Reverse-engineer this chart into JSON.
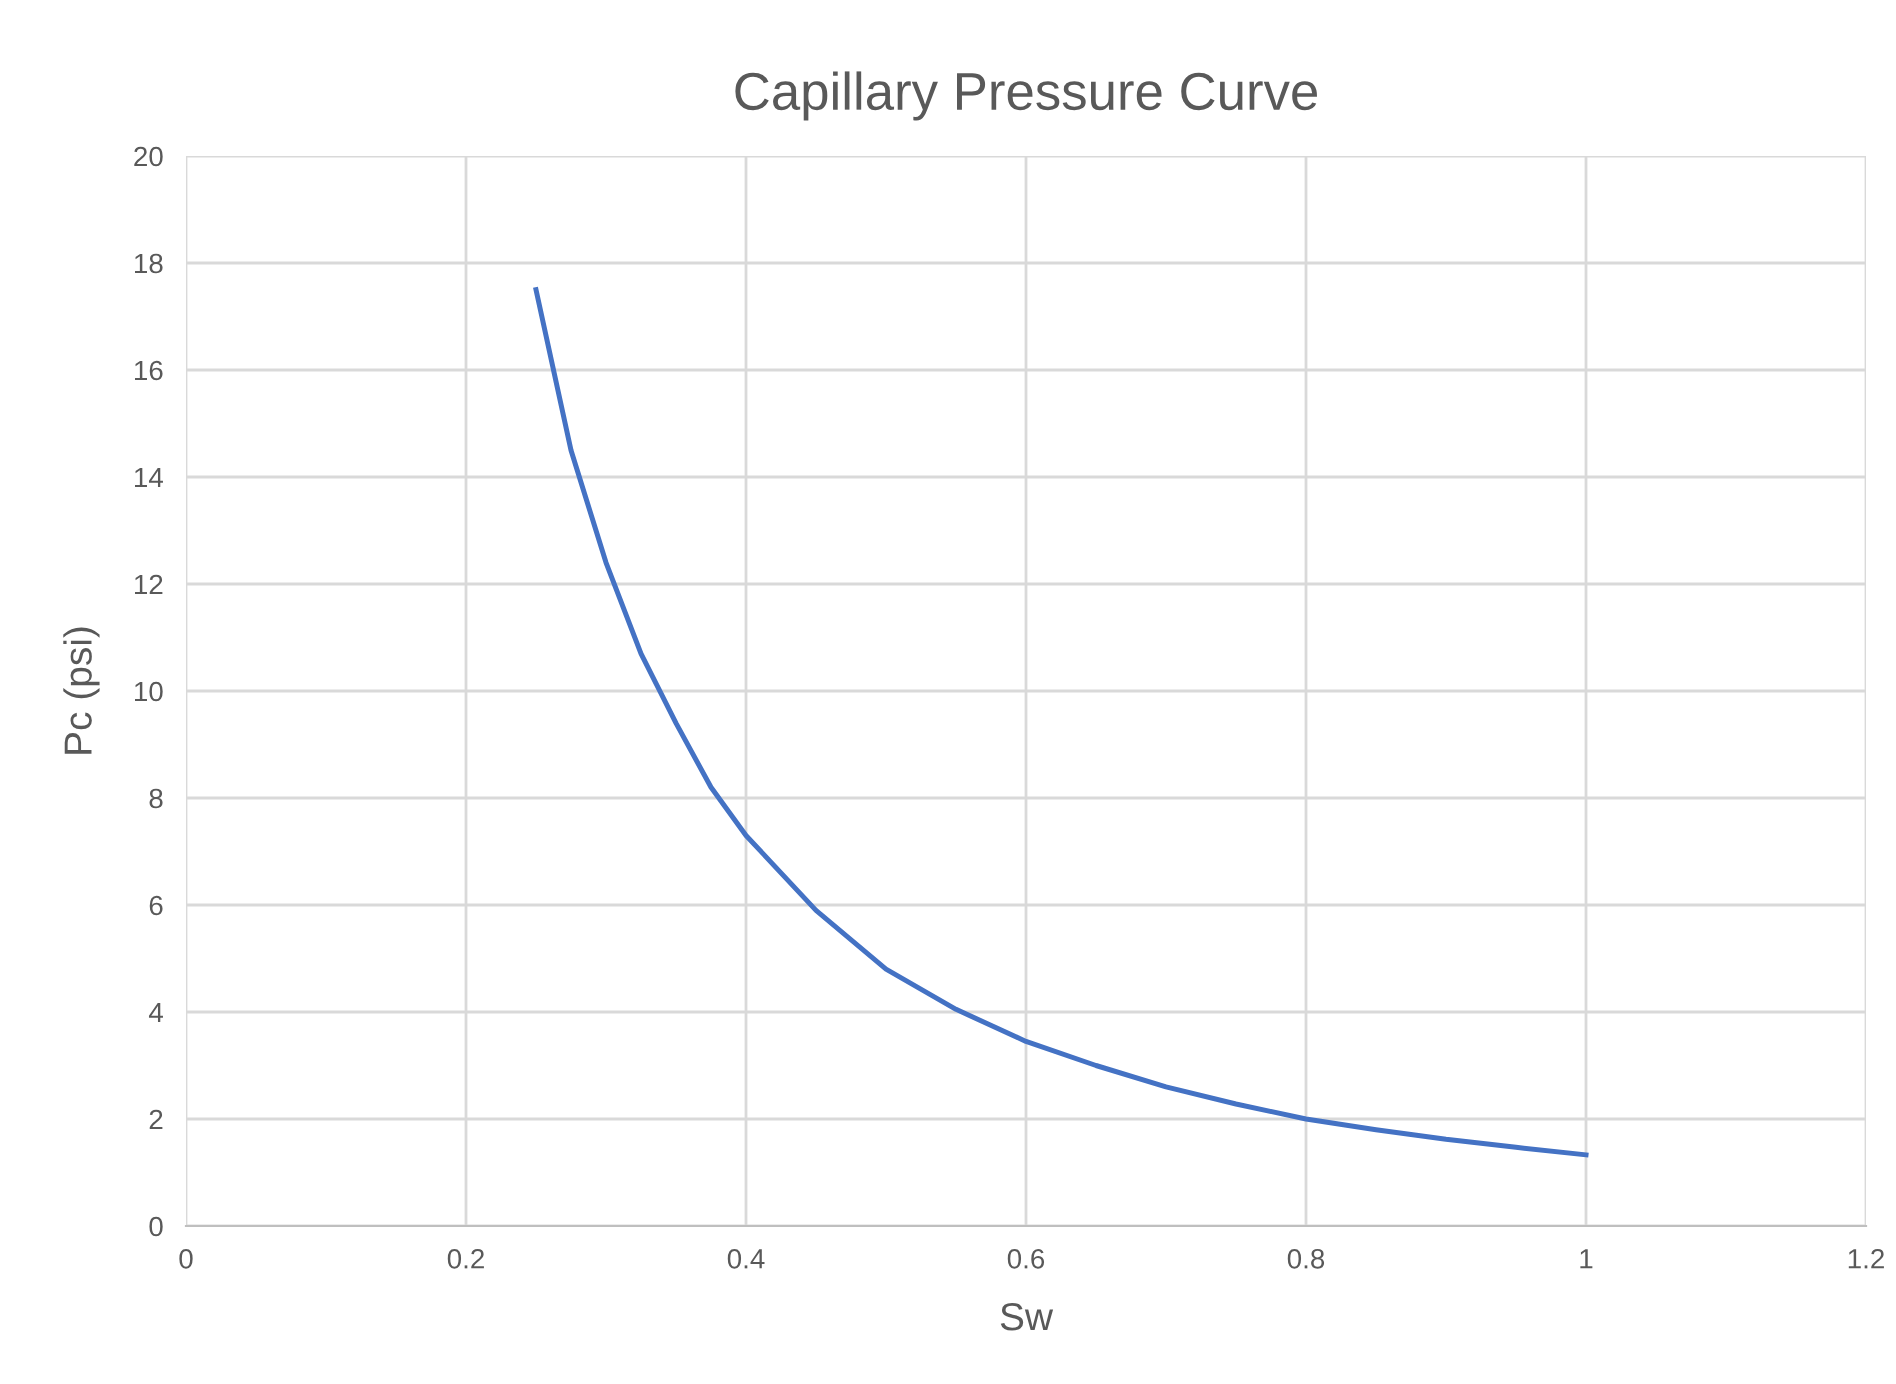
{
  "chart_data": {
    "type": "line",
    "title": "Capillary Pressure Curve",
    "xlabel": "Sw",
    "ylabel": "Pc (psi)",
    "x": [
      0.25,
      0.275,
      0.3,
      0.325,
      0.35,
      0.375,
      0.4,
      0.45,
      0.5,
      0.55,
      0.6,
      0.65,
      0.7,
      0.75,
      0.8,
      0.85,
      0.9,
      0.95,
      1.0
    ],
    "series": [
      {
        "color": "#4472c4",
        "values": [
          17.5,
          14.5,
          12.4,
          10.7,
          9.4,
          8.2,
          7.3,
          5.9,
          4.8,
          4.05,
          3.45,
          3.0,
          2.6,
          2.28,
          2.0,
          1.8,
          1.62,
          1.47,
          1.33
        ]
      }
    ],
    "xlim": [
      0,
      1.2
    ],
    "xticks": [
      0,
      0.2,
      0.4,
      0.6,
      0.8,
      1,
      1.2
    ],
    "ylim": [
      0,
      20
    ],
    "yticks": [
      0,
      2,
      4,
      6,
      8,
      10,
      12,
      14,
      16,
      18,
      20
    ],
    "grid": true,
    "marker": "none",
    "line_style": "solid"
  }
}
